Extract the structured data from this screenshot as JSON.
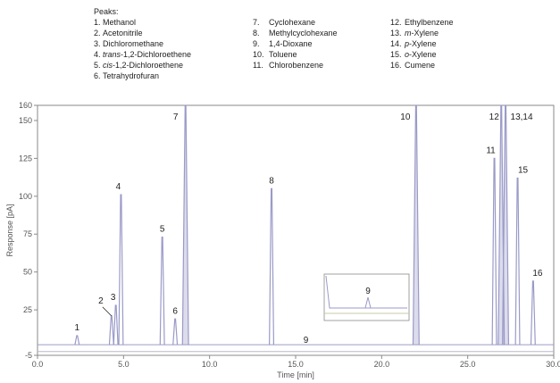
{
  "legend": {
    "heading": "Peaks:",
    "items": [
      {
        "num": "1.",
        "pre": "",
        "ital": "",
        "post": "Methanol"
      },
      {
        "num": "2.",
        "pre": "",
        "ital": "",
        "post": "Acetonitrile"
      },
      {
        "num": "3.",
        "pre": "",
        "ital": "",
        "post": "Dichloromethane"
      },
      {
        "num": "4.",
        "pre": "",
        "ital": "trans",
        "post": "-1,2-Dichloroethene"
      },
      {
        "num": "5.",
        "pre": "",
        "ital": "cis",
        "post": "-1,2-Dichloroethene"
      },
      {
        "num": "6.",
        "pre": "",
        "ital": "",
        "post": "Tetrahydrofuran"
      },
      {
        "num": "7.",
        "pre": "",
        "ital": "",
        "post": "Cyclohexane"
      },
      {
        "num": "8.",
        "pre": "",
        "ital": "",
        "post": "Methylcyclohexane"
      },
      {
        "num": "9.",
        "pre": "",
        "ital": "",
        "post": "1,4-Dioxane"
      },
      {
        "num": "10.",
        "pre": "",
        "ital": "",
        "post": "Toluene"
      },
      {
        "num": "11.",
        "pre": "",
        "ital": "",
        "post": "Chlorobenzene"
      },
      {
        "num": "12.",
        "pre": "",
        "ital": "",
        "post": "Ethylbenzene"
      },
      {
        "num": "13.",
        "pre": "",
        "ital": "m",
        "post": "-Xylene"
      },
      {
        "num": "14.",
        "pre": "",
        "ital": "p",
        "post": "-Xylene"
      },
      {
        "num": "15.",
        "pre": "",
        "ital": "o",
        "post": "-Xylene"
      },
      {
        "num": "16.",
        "pre": "",
        "ital": "",
        "post": "Cumene"
      }
    ]
  },
  "chart_data": {
    "type": "line",
    "title": "",
    "xlabel": "Time [min]",
    "ylabel": "Response [pA]",
    "xlim": [
      0,
      30
    ],
    "ylim": [
      -5,
      160
    ],
    "xticks": [
      "0.0",
      "5.0",
      "10.0",
      "15.0",
      "20.0",
      "25.0",
      "30.0"
    ],
    "yticks": [
      "-5",
      "25",
      "50",
      "75",
      "100",
      "125",
      "150",
      "160"
    ],
    "grid": false,
    "baseline": 2,
    "line_color": "#9a9ac8",
    "peaks": [
      {
        "label": "1",
        "rt": 2.3,
        "height": 8
      },
      {
        "label": "2",
        "rt": 4.3,
        "height": 21
      },
      {
        "label": "3",
        "rt": 4.55,
        "height": 28
      },
      {
        "label": "4",
        "rt": 4.85,
        "height": 101
      },
      {
        "label": "5",
        "rt": 7.25,
        "height": 73
      },
      {
        "label": "6",
        "rt": 8.0,
        "height": 19
      },
      {
        "label": "7",
        "rt": 8.6,
        "height": 160
      },
      {
        "label": "8",
        "rt": 13.6,
        "height": 105
      },
      {
        "label": "10",
        "rt": 22.0,
        "height": 160
      },
      {
        "label": "11",
        "rt": 26.55,
        "height": 125
      },
      {
        "label": "12",
        "rt": 26.95,
        "height": 160
      },
      {
        "label": "13,14",
        "rt": 27.2,
        "height": 160
      },
      {
        "label": "15",
        "rt": 27.9,
        "height": 112
      },
      {
        "label": "16",
        "rt": 28.8,
        "height": 44
      }
    ],
    "peak9_label": "9",
    "inset_label": "9"
  }
}
